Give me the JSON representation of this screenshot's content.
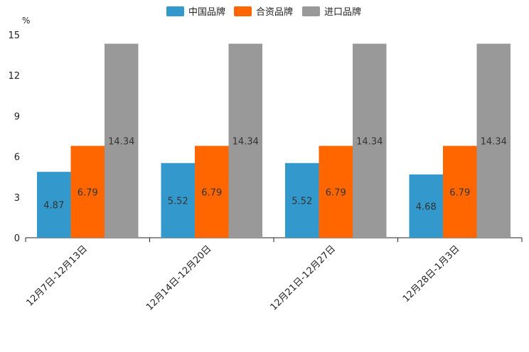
{
  "chart_data": {
    "type": "bar",
    "unit": "%",
    "categories": [
      "12月7日-12月13日",
      "12月14日-12月20日",
      "12月21日-12月27日",
      "12月28日-1月3日"
    ],
    "series": [
      {
        "name": "中国品牌",
        "color": "#3399cc",
        "values": [
          4.87,
          5.52,
          5.52,
          4.68
        ],
        "labels": [
          "4.87",
          "5.52",
          "5.52",
          "4.68"
        ]
      },
      {
        "name": "合资品牌",
        "color": "#ff6600",
        "values": [
          6.79,
          6.79,
          6.79,
          6.79
        ],
        "labels": [
          "6.79",
          "6.79",
          "6.79",
          "6.79"
        ]
      },
      {
        "name": "进口品牌",
        "color": "#999999",
        "values": [
          14.34,
          14.34,
          14.34,
          14.34
        ],
        "labels": [
          "14.34",
          "14.34",
          "14.34",
          "14.34"
        ]
      }
    ],
    "ylim": [
      0,
      15
    ],
    "yticks": [
      "0",
      "3",
      "6",
      "9",
      "12",
      "15"
    ],
    "legend_position": "top-center",
    "grid": false
  }
}
